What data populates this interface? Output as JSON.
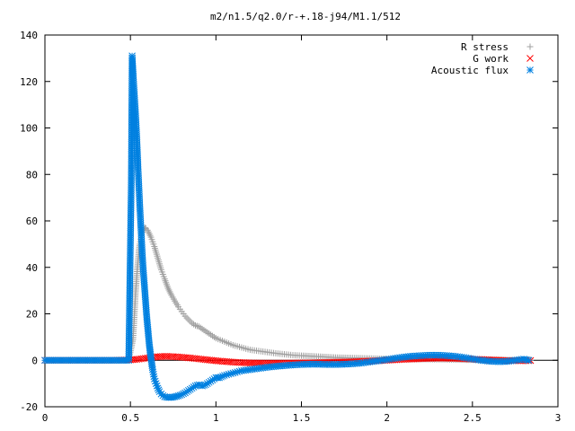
{
  "chart_data": {
    "type": "scatter",
    "title": "m2/n1.5/q2.0/r-+.18-j94/M1.1/512",
    "xlabel": "",
    "ylabel": "",
    "xlim": [
      0,
      3
    ],
    "ylim": [
      -20,
      140
    ],
    "x_ticks": [
      0,
      0.5,
      1,
      1.5,
      2,
      2.5,
      3
    ],
    "x_tick_labels": [
      "0",
      "0.5",
      "1",
      "1.5",
      "2",
      "2.5",
      "3"
    ],
    "y_ticks": [
      -20,
      0,
      20,
      40,
      60,
      80,
      100,
      120,
      140
    ],
    "y_tick_labels": [
      "-20",
      "0",
      "20",
      "40",
      "60",
      "80",
      "100",
      "120",
      "140"
    ],
    "grid": false,
    "zero_axis": true,
    "legend_position": "top-right",
    "series": [
      {
        "name": "R stress",
        "marker": "plus",
        "color": "#a0a0a0",
        "points": [
          [
            0.0,
            0
          ],
          [
            0.1,
            0
          ],
          [
            0.2,
            0
          ],
          [
            0.3,
            0
          ],
          [
            0.4,
            0
          ],
          [
            0.49,
            0
          ],
          [
            0.515,
            9
          ],
          [
            0.52,
            15
          ],
          [
            0.525,
            22
          ],
          [
            0.53,
            29
          ],
          [
            0.535,
            34
          ],
          [
            0.54,
            39
          ],
          [
            0.545,
            43
          ],
          [
            0.55,
            47
          ],
          [
            0.555,
            50
          ],
          [
            0.56,
            52
          ],
          [
            0.565,
            54
          ],
          [
            0.57,
            55
          ],
          [
            0.575,
            56
          ],
          [
            0.58,
            56.5
          ],
          [
            0.585,
            57
          ],
          [
            0.59,
            56.8
          ],
          [
            0.6,
            56
          ],
          [
            0.61,
            54.5
          ],
          [
            0.62,
            53
          ],
          [
            0.63,
            51
          ],
          [
            0.64,
            49
          ],
          [
            0.65,
            46.5
          ],
          [
            0.66,
            44
          ],
          [
            0.67,
            41.5
          ],
          [
            0.68,
            39
          ],
          [
            0.69,
            37
          ],
          [
            0.7,
            35
          ],
          [
            0.72,
            31
          ],
          [
            0.74,
            28
          ],
          [
            0.76,
            25.5
          ],
          [
            0.78,
            23
          ],
          [
            0.8,
            21
          ],
          [
            0.82,
            19
          ],
          [
            0.84,
            17.5
          ],
          [
            0.86,
            16
          ],
          [
            0.88,
            15
          ],
          [
            0.9,
            14.5
          ],
          [
            0.92,
            13.5
          ],
          [
            0.94,
            12.5
          ],
          [
            0.96,
            11.5
          ],
          [
            0.98,
            10.5
          ],
          [
            1.0,
            9.5
          ],
          [
            1.05,
            8
          ],
          [
            1.1,
            6.5
          ],
          [
            1.15,
            5.5
          ],
          [
            1.2,
            4.5
          ],
          [
            1.25,
            4
          ],
          [
            1.3,
            3.5
          ],
          [
            1.35,
            3
          ],
          [
            1.4,
            2.6
          ],
          [
            1.45,
            2.2
          ],
          [
            1.5,
            2
          ],
          [
            1.6,
            1.6
          ],
          [
            1.7,
            1.2
          ],
          [
            1.8,
            1
          ],
          [
            1.9,
            0.8
          ],
          [
            2.0,
            0.6
          ],
          [
            2.1,
            0.5
          ],
          [
            2.2,
            0.5
          ],
          [
            2.3,
            0.4
          ],
          [
            2.4,
            0.3
          ],
          [
            2.5,
            0.2
          ],
          [
            2.6,
            0.2
          ],
          [
            2.7,
            0.1
          ],
          [
            2.8,
            0.1
          ],
          [
            2.84,
            0.1
          ]
        ]
      },
      {
        "name": "G work",
        "marker": "cross",
        "color": "#ff0000",
        "points": [
          [
            0.0,
            0
          ],
          [
            0.1,
            0
          ],
          [
            0.2,
            0
          ],
          [
            0.3,
            0
          ],
          [
            0.4,
            0
          ],
          [
            0.5,
            0.2
          ],
          [
            0.55,
            0.5
          ],
          [
            0.6,
            1
          ],
          [
            0.65,
            1.5
          ],
          [
            0.7,
            1.7
          ],
          [
            0.75,
            1.6
          ],
          [
            0.8,
            1.3
          ],
          [
            0.85,
            1
          ],
          [
            0.9,
            0.6
          ],
          [
            0.95,
            0.2
          ],
          [
            1.0,
            -0.2
          ],
          [
            1.05,
            -0.5
          ],
          [
            1.1,
            -0.8
          ],
          [
            1.15,
            -1
          ],
          [
            1.2,
            -1.1
          ],
          [
            1.3,
            -1.2
          ],
          [
            1.4,
            -1.2
          ],
          [
            1.5,
            -1.1
          ],
          [
            1.6,
            -1
          ],
          [
            1.7,
            -0.8
          ],
          [
            1.8,
            -0.6
          ],
          [
            1.9,
            -0.3
          ],
          [
            2.0,
            0
          ],
          [
            2.1,
            0.4
          ],
          [
            2.2,
            0.7
          ],
          [
            2.3,
            0.9
          ],
          [
            2.4,
            0.8
          ],
          [
            2.5,
            0.5
          ],
          [
            2.6,
            0.2
          ],
          [
            2.7,
            -0.1
          ],
          [
            2.8,
            -0.2
          ],
          [
            2.84,
            -0.1
          ]
        ]
      },
      {
        "name": "Acoustic flux",
        "marker": "star",
        "color": "#0080e0",
        "points": [
          [
            0.0,
            0
          ],
          [
            0.1,
            0
          ],
          [
            0.2,
            0
          ],
          [
            0.3,
            0
          ],
          [
            0.4,
            0
          ],
          [
            0.49,
            0
          ],
          [
            0.505,
            76
          ],
          [
            0.51,
            131
          ],
          [
            0.52,
            118
          ],
          [
            0.525,
            112
          ],
          [
            0.53,
            106
          ],
          [
            0.535,
            99
          ],
          [
            0.54,
            91
          ],
          [
            0.545,
            82
          ],
          [
            0.55,
            74
          ],
          [
            0.555,
            66
          ],
          [
            0.56,
            59
          ],
          [
            0.565,
            52
          ],
          [
            0.57,
            45
          ],
          [
            0.575,
            39
          ],
          [
            0.58,
            34
          ],
          [
            0.585,
            29
          ],
          [
            0.59,
            24
          ],
          [
            0.595,
            19
          ],
          [
            0.6,
            15
          ],
          [
            0.605,
            11
          ],
          [
            0.61,
            7
          ],
          [
            0.615,
            4
          ],
          [
            0.62,
            1
          ],
          [
            0.625,
            -1.5
          ],
          [
            0.63,
            -4
          ],
          [
            0.635,
            -6
          ],
          [
            0.64,
            -8
          ],
          [
            0.65,
            -10
          ],
          [
            0.66,
            -12
          ],
          [
            0.67,
            -13.5
          ],
          [
            0.68,
            -14.5
          ],
          [
            0.69,
            -15.2
          ],
          [
            0.7,
            -15.7
          ],
          [
            0.72,
            -16
          ],
          [
            0.74,
            -16
          ],
          [
            0.76,
            -15.7
          ],
          [
            0.78,
            -15.3
          ],
          [
            0.8,
            -14.8
          ],
          [
            0.82,
            -14
          ],
          [
            0.84,
            -13
          ],
          [
            0.86,
            -12
          ],
          [
            0.88,
            -11
          ],
          [
            0.9,
            -10.5
          ],
          [
            0.92,
            -11
          ],
          [
            0.94,
            -10.5
          ],
          [
            0.96,
            -9.5
          ],
          [
            0.98,
            -8.5
          ],
          [
            1.0,
            -7.5
          ],
          [
            1.02,
            -7.5
          ],
          [
            1.05,
            -6.5
          ],
          [
            1.1,
            -5.5
          ],
          [
            1.15,
            -4.5
          ],
          [
            1.2,
            -4
          ],
          [
            1.25,
            -3.5
          ],
          [
            1.3,
            -3
          ],
          [
            1.35,
            -2.6
          ],
          [
            1.4,
            -2.3
          ],
          [
            1.45,
            -2
          ],
          [
            1.5,
            -1.8
          ],
          [
            1.55,
            -1.7
          ],
          [
            1.6,
            -1.7
          ],
          [
            1.65,
            -1.8
          ],
          [
            1.7,
            -1.8
          ],
          [
            1.75,
            -1.7
          ],
          [
            1.8,
            -1.5
          ],
          [
            1.85,
            -1.2
          ],
          [
            1.9,
            -0.7
          ],
          [
            1.95,
            -0.2
          ],
          [
            2.0,
            0.3
          ],
          [
            2.05,
            0.9
          ],
          [
            2.1,
            1.4
          ],
          [
            2.15,
            1.8
          ],
          [
            2.2,
            2
          ],
          [
            2.25,
            2.2
          ],
          [
            2.3,
            2.2
          ],
          [
            2.35,
            2
          ],
          [
            2.4,
            1.7
          ],
          [
            2.45,
            1.2
          ],
          [
            2.5,
            0.6
          ],
          [
            2.55,
            0
          ],
          [
            2.6,
            -0.4
          ],
          [
            2.65,
            -0.6
          ],
          [
            2.7,
            -0.5
          ],
          [
            2.75,
            0
          ],
          [
            2.8,
            0.5
          ],
          [
            2.83,
            0
          ]
        ]
      }
    ]
  }
}
